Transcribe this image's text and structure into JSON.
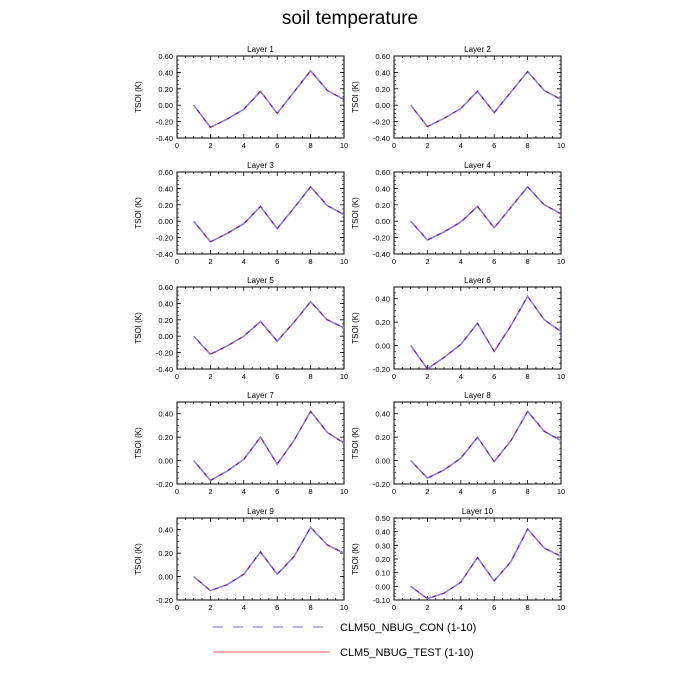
{
  "figure": {
    "title": "soil temperature"
  },
  "legend": {
    "entries": [
      {
        "label": "CLM50_NBUG_CON (1-10)",
        "color": "#8a8ad6",
        "style": "dashed"
      },
      {
        "label": "CLM5_NBUG_TEST (1-10)",
        "color": "#f08080",
        "style": "solid"
      }
    ]
  },
  "colors": {
    "overlap_line": "#7a1aa8",
    "axis": "#000000"
  },
  "chart_data": [
    {
      "type": "line",
      "title": "Layer 1",
      "xlabel": "",
      "ylabel": "TSOI  (K)",
      "xlim": [
        0,
        10
      ],
      "ylim": [
        -0.4,
        0.6
      ],
      "xticks": [
        0,
        2,
        4,
        6,
        8,
        10
      ],
      "yticks": [
        -0.4,
        -0.2,
        0.0,
        0.2,
        0.4,
        0.6
      ],
      "ytick_labels": [
        "-0.40",
        "-0.20",
        "0.00",
        "0.20",
        "0.40",
        "0.60"
      ],
      "x": [
        1,
        2,
        3,
        4,
        5,
        6,
        7,
        8,
        9,
        10
      ],
      "series": [
        {
          "name": "CLM50_NBUG_CON (1-10)",
          "values": [
            0.0,
            -0.27,
            -0.17,
            -0.05,
            0.17,
            -0.1,
            0.16,
            0.42,
            0.18,
            0.07
          ]
        },
        {
          "name": "CLM5_NBUG_TEST (1-10)",
          "values": [
            0.0,
            -0.27,
            -0.17,
            -0.05,
            0.17,
            -0.1,
            0.16,
            0.42,
            0.18,
            0.07
          ]
        }
      ]
    },
    {
      "type": "line",
      "title": "Layer 2",
      "xlabel": "",
      "ylabel": "TSOI  (K)",
      "xlim": [
        0,
        10
      ],
      "ylim": [
        -0.4,
        0.6
      ],
      "xticks": [
        0,
        2,
        4,
        6,
        8,
        10
      ],
      "yticks": [
        -0.4,
        -0.2,
        0.0,
        0.2,
        0.4,
        0.6
      ],
      "ytick_labels": [
        "-0.40",
        "-0.20",
        "0.00",
        "0.20",
        "0.40",
        "0.60"
      ],
      "x": [
        1,
        2,
        3,
        4,
        5,
        6,
        7,
        8,
        9,
        10
      ],
      "series": [
        {
          "name": "CLM50_NBUG_CON (1-10)",
          "values": [
            0.0,
            -0.26,
            -0.16,
            -0.04,
            0.17,
            -0.09,
            0.16,
            0.41,
            0.18,
            0.07
          ]
        },
        {
          "name": "CLM5_NBUG_TEST (1-10)",
          "values": [
            0.0,
            -0.26,
            -0.16,
            -0.04,
            0.17,
            -0.09,
            0.16,
            0.41,
            0.18,
            0.07
          ]
        }
      ]
    },
    {
      "type": "line",
      "title": "Layer 3",
      "xlabel": "",
      "ylabel": "TSOI  (K)",
      "xlim": [
        0,
        10
      ],
      "ylim": [
        -0.4,
        0.6
      ],
      "xticks": [
        0,
        2,
        4,
        6,
        8,
        10
      ],
      "yticks": [
        -0.4,
        -0.2,
        0.0,
        0.2,
        0.4,
        0.6
      ],
      "ytick_labels": [
        "-0.40",
        "-0.20",
        "0.00",
        "0.20",
        "0.40",
        "0.60"
      ],
      "x": [
        1,
        2,
        3,
        4,
        5,
        6,
        7,
        8,
        9,
        10
      ],
      "series": [
        {
          "name": "CLM50_NBUG_CON (1-10)",
          "values": [
            0.0,
            -0.25,
            -0.15,
            -0.03,
            0.18,
            -0.09,
            0.16,
            0.42,
            0.19,
            0.08
          ]
        },
        {
          "name": "CLM5_NBUG_TEST (1-10)",
          "values": [
            0.0,
            -0.25,
            -0.15,
            -0.03,
            0.18,
            -0.09,
            0.16,
            0.42,
            0.19,
            0.08
          ]
        }
      ]
    },
    {
      "type": "line",
      "title": "Layer 4",
      "xlabel": "",
      "ylabel": "TSOI  (K)",
      "xlim": [
        0,
        10
      ],
      "ylim": [
        -0.4,
        0.6
      ],
      "xticks": [
        0,
        2,
        4,
        6,
        8,
        10
      ],
      "yticks": [
        -0.4,
        -0.2,
        0.0,
        0.2,
        0.4,
        0.6
      ],
      "ytick_labels": [
        "-0.40",
        "-0.20",
        "0.00",
        "0.20",
        "0.40",
        "0.60"
      ],
      "x": [
        1,
        2,
        3,
        4,
        5,
        6,
        7,
        8,
        9,
        10
      ],
      "series": [
        {
          "name": "CLM50_NBUG_CON (1-10)",
          "values": [
            0.0,
            -0.23,
            -0.13,
            -0.01,
            0.18,
            -0.08,
            0.17,
            0.42,
            0.2,
            0.09
          ]
        },
        {
          "name": "CLM5_NBUG_TEST (1-10)",
          "values": [
            0.0,
            -0.23,
            -0.13,
            -0.01,
            0.18,
            -0.08,
            0.17,
            0.42,
            0.2,
            0.09
          ]
        }
      ]
    },
    {
      "type": "line",
      "title": "Layer 5",
      "xlabel": "",
      "ylabel": "TSOI  (K)",
      "xlim": [
        0,
        10
      ],
      "ylim": [
        -0.4,
        0.6
      ],
      "xticks": [
        0,
        2,
        4,
        6,
        8,
        10
      ],
      "yticks": [
        -0.4,
        -0.2,
        0.0,
        0.2,
        0.4,
        0.6
      ],
      "ytick_labels": [
        "-0.40",
        "-0.20",
        "0.00",
        "0.20",
        "0.40",
        "0.60"
      ],
      "x": [
        1,
        2,
        3,
        4,
        5,
        6,
        7,
        8,
        9,
        10
      ],
      "series": [
        {
          "name": "CLM50_NBUG_CON (1-10)",
          "values": [
            0.0,
            -0.22,
            -0.12,
            0.0,
            0.18,
            -0.06,
            0.17,
            0.42,
            0.2,
            0.1
          ]
        },
        {
          "name": "CLM5_NBUG_TEST (1-10)",
          "values": [
            0.0,
            -0.22,
            -0.12,
            0.0,
            0.18,
            -0.06,
            0.17,
            0.42,
            0.2,
            0.1
          ]
        }
      ]
    },
    {
      "type": "line",
      "title": "Layer 6",
      "xlabel": "",
      "ylabel": "TSOI  (K)",
      "xlim": [
        0,
        10
      ],
      "ylim": [
        -0.2,
        0.5
      ],
      "xticks": [
        0,
        2,
        4,
        6,
        8,
        10
      ],
      "yticks": [
        -0.2,
        0.0,
        0.2,
        0.4
      ],
      "ytick_labels": [
        "-0.20",
        "0.00",
        "0.20",
        "0.40"
      ],
      "x": [
        1,
        2,
        3,
        4,
        5,
        6,
        7,
        8,
        9,
        10
      ],
      "series": [
        {
          "name": "CLM50_NBUG_CON (1-10)",
          "values": [
            0.0,
            -0.2,
            -0.1,
            0.01,
            0.19,
            -0.05,
            0.17,
            0.42,
            0.22,
            0.12
          ]
        },
        {
          "name": "CLM5_NBUG_TEST (1-10)",
          "values": [
            0.0,
            -0.2,
            -0.1,
            0.01,
            0.19,
            -0.05,
            0.17,
            0.42,
            0.22,
            0.12
          ]
        }
      ]
    },
    {
      "type": "line",
      "title": "Layer 7",
      "xlabel": "",
      "ylabel": "TSOI  (K)",
      "xlim": [
        0,
        10
      ],
      "ylim": [
        -0.2,
        0.5
      ],
      "xticks": [
        0,
        2,
        4,
        6,
        8,
        10
      ],
      "yticks": [
        -0.2,
        0.0,
        0.2,
        0.4
      ],
      "ytick_labels": [
        "-0.20",
        "0.00",
        "0.20",
        "0.40"
      ],
      "x": [
        1,
        2,
        3,
        4,
        5,
        6,
        7,
        8,
        9,
        10
      ],
      "series": [
        {
          "name": "CLM50_NBUG_CON (1-10)",
          "values": [
            0.0,
            -0.17,
            -0.09,
            0.01,
            0.2,
            -0.03,
            0.17,
            0.42,
            0.24,
            0.15
          ]
        },
        {
          "name": "CLM5_NBUG_TEST (1-10)",
          "values": [
            0.0,
            -0.17,
            -0.09,
            0.01,
            0.2,
            -0.03,
            0.17,
            0.42,
            0.24,
            0.15
          ]
        }
      ]
    },
    {
      "type": "line",
      "title": "Layer 8",
      "xlabel": "",
      "ylabel": "TSOI  (K)",
      "xlim": [
        0,
        10
      ],
      "ylim": [
        -0.2,
        0.5
      ],
      "xticks": [
        0,
        2,
        4,
        6,
        8,
        10
      ],
      "yticks": [
        -0.2,
        0.0,
        0.2,
        0.4
      ],
      "ytick_labels": [
        "-0.20",
        "0.00",
        "0.20",
        "0.40"
      ],
      "x": [
        1,
        2,
        3,
        4,
        5,
        6,
        7,
        8,
        9,
        10
      ],
      "series": [
        {
          "name": "CLM50_NBUG_CON (1-10)",
          "values": [
            0.0,
            -0.15,
            -0.08,
            0.02,
            0.2,
            -0.01,
            0.17,
            0.42,
            0.25,
            0.17
          ]
        },
        {
          "name": "CLM5_NBUG_TEST (1-10)",
          "values": [
            0.0,
            -0.15,
            -0.08,
            0.02,
            0.2,
            -0.01,
            0.17,
            0.42,
            0.25,
            0.17
          ]
        }
      ]
    },
    {
      "type": "line",
      "title": "Layer 9",
      "xlabel": "",
      "ylabel": "TSOI  (K)",
      "xlim": [
        0,
        10
      ],
      "ylim": [
        -0.2,
        0.5
      ],
      "xticks": [
        0,
        2,
        4,
        6,
        8,
        10
      ],
      "yticks": [
        -0.2,
        0.0,
        0.2,
        0.4
      ],
      "ytick_labels": [
        "-0.20",
        "0.00",
        "0.20",
        "0.40"
      ],
      "x": [
        1,
        2,
        3,
        4,
        5,
        6,
        7,
        8,
        9,
        10
      ],
      "series": [
        {
          "name": "CLM50_NBUG_CON (1-10)",
          "values": [
            0.0,
            -0.12,
            -0.07,
            0.02,
            0.21,
            0.02,
            0.17,
            0.42,
            0.27,
            0.2
          ]
        },
        {
          "name": "CLM5_NBUG_TEST (1-10)",
          "values": [
            0.0,
            -0.12,
            -0.07,
            0.02,
            0.21,
            0.02,
            0.17,
            0.42,
            0.27,
            0.2
          ]
        }
      ]
    },
    {
      "type": "line",
      "title": "Layer 10",
      "xlabel": "",
      "ylabel": "TSOI  (K)",
      "xlim": [
        0,
        10
      ],
      "ylim": [
        -0.1,
        0.5
      ],
      "xticks": [
        0,
        2,
        4,
        6,
        8,
        10
      ],
      "yticks": [
        -0.1,
        0.0,
        0.1,
        0.2,
        0.3,
        0.4,
        0.5
      ],
      "ytick_labels": [
        "-0.10",
        "0.00",
        "0.10",
        "0.20",
        "0.30",
        "0.40",
        "0.50"
      ],
      "x": [
        1,
        2,
        3,
        4,
        5,
        6,
        7,
        8,
        9,
        10
      ],
      "series": [
        {
          "name": "CLM50_NBUG_CON (1-10)",
          "values": [
            0.0,
            -0.09,
            -0.05,
            0.03,
            0.21,
            0.04,
            0.18,
            0.42,
            0.28,
            0.22
          ]
        },
        {
          "name": "CLM5_NBUG_TEST (1-10)",
          "values": [
            0.0,
            -0.09,
            -0.05,
            0.03,
            0.21,
            0.04,
            0.18,
            0.42,
            0.28,
            0.22
          ]
        }
      ]
    }
  ]
}
